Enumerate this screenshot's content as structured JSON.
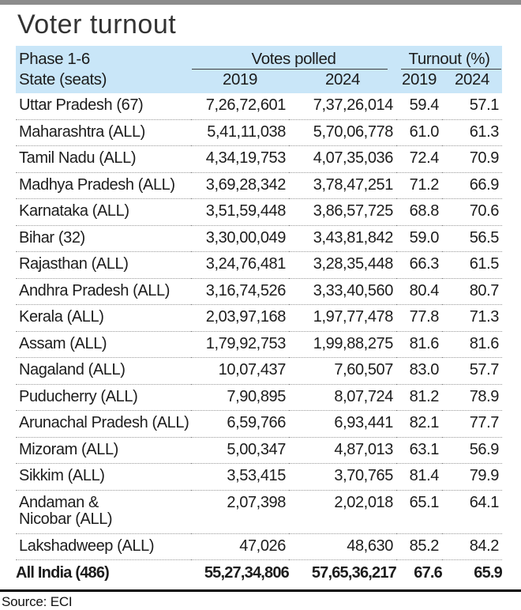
{
  "page": {
    "title": "Voter turnout",
    "source_label": "Source: ECI"
  },
  "colors": {
    "header_bg": "#c9e6f8",
    "top_bar": "#8c8c8c",
    "rule": "#3c3c3c"
  },
  "chart_data": {
    "type": "table",
    "title": "Voter turnout",
    "header": {
      "phase": "Phase 1-6",
      "state": "State (seats)",
      "votes_group": "Votes polled",
      "turnout_group": "Turnout (%)",
      "votes_years": [
        "2019",
        "2024"
      ],
      "turnout_years": [
        "2019",
        "2024"
      ]
    },
    "columns": [
      "State (seats)",
      "Votes polled 2019",
      "Votes polled 2024",
      "Turnout (%) 2019",
      "Turnout (%) 2024"
    ],
    "rows": [
      {
        "state": "Uttar Pradesh (67)",
        "votes_2019": "7,26,72,601",
        "votes_2024": "7,37,26,014",
        "turnout_2019": "59.4",
        "turnout_2024": "57.1"
      },
      {
        "state": "Maharashtra (ALL)",
        "votes_2019": "5,41,11,038",
        "votes_2024": "5,70,06,778",
        "turnout_2019": "61.0",
        "turnout_2024": "61.3"
      },
      {
        "state": "Tamil Nadu (ALL)",
        "votes_2019": "4,34,19,753",
        "votes_2024": "4,07,35,036",
        "turnout_2019": "72.4",
        "turnout_2024": "70.9"
      },
      {
        "state": "Madhya Pradesh (ALL)",
        "votes_2019": "3,69,28,342",
        "votes_2024": "3,78,47,251",
        "turnout_2019": "71.2",
        "turnout_2024": "66.9"
      },
      {
        "state": "Karnataka (ALL)",
        "votes_2019": "3,51,59,448",
        "votes_2024": "3,86,57,725",
        "turnout_2019": "68.8",
        "turnout_2024": "70.6"
      },
      {
        "state": "Bihar (32)",
        "votes_2019": "3,30,00,049",
        "votes_2024": "3,43,81,842",
        "turnout_2019": "59.0",
        "turnout_2024": "56.5"
      },
      {
        "state": "Rajasthan (ALL)",
        "votes_2019": "3,24,76,481",
        "votes_2024": "3,28,35,448",
        "turnout_2019": "66.3",
        "turnout_2024": "61.5"
      },
      {
        "state": "Andhra Pradesh (ALL)",
        "votes_2019": "3,16,74,526",
        "votes_2024": "3,33,40,560",
        "turnout_2019": "80.4",
        "turnout_2024": "80.7"
      },
      {
        "state": "Kerala (ALL)",
        "votes_2019": "2,03,97,168",
        "votes_2024": "1,97,77,478",
        "turnout_2019": "77.8",
        "turnout_2024": "71.3"
      },
      {
        "state": "Assam (ALL)",
        "votes_2019": "1,79,92,753",
        "votes_2024": "1,99,88,275",
        "turnout_2019": "81.6",
        "turnout_2024": "81.6"
      },
      {
        "state": "Nagaland (ALL)",
        "votes_2019": "10,07,437",
        "votes_2024": "7,60,507",
        "turnout_2019": "83.0",
        "turnout_2024": "57.7"
      },
      {
        "state": "Puducherry (ALL)",
        "votes_2019": "7,90,895",
        "votes_2024": "8,07,724",
        "turnout_2019": "81.2",
        "turnout_2024": "78.9"
      },
      {
        "state": "Arunachal Pradesh (ALL)",
        "votes_2019": "6,59,766",
        "votes_2024": "6,93,441",
        "turnout_2019": "82.1",
        "turnout_2024": "77.7"
      },
      {
        "state": "Mizoram (ALL)",
        "votes_2019": "5,00,347",
        "votes_2024": "4,87,013",
        "turnout_2019": "63.1",
        "turnout_2024": "56.9"
      },
      {
        "state": "Sikkim (ALL)",
        "votes_2019": "3,53,415",
        "votes_2024": "3,70,765",
        "turnout_2019": "81.4",
        "turnout_2024": "79.9"
      },
      {
        "state": "Andaman &\nNicobar (ALL)",
        "votes_2019": "2,07,398",
        "votes_2024": "2,02,018",
        "turnout_2019": "65.1",
        "turnout_2024": "64.1"
      },
      {
        "state": "Lakshadweep (ALL)",
        "votes_2019": "47,026",
        "votes_2024": "48,630",
        "turnout_2019": "85.2",
        "turnout_2024": "84.2"
      }
    ],
    "total": {
      "state": "All India (486)",
      "votes_2019": "55,27,34,806",
      "votes_2024": "57,65,36,217",
      "turnout_2019": "67.6",
      "turnout_2024": "65.9"
    },
    "source": "ECI"
  }
}
